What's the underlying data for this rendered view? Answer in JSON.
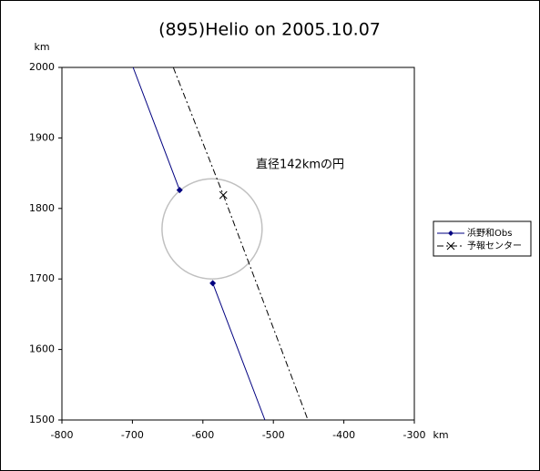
{
  "chart_data": {
    "type": "line",
    "title": "(895)Helio on 2005.10.07",
    "x_label": "km",
    "y_label": "km",
    "xlim": [
      -800,
      -300
    ],
    "ylim": [
      1500,
      2000
    ],
    "xticks": [
      -800,
      -700,
      -600,
      -500,
      -400,
      -300
    ],
    "yticks": [
      1500,
      1600,
      1700,
      1800,
      1900,
      2000
    ],
    "series": [
      {
        "name": "浜野和Obs",
        "color": "#000080",
        "marker": "diamond",
        "dash": "solid",
        "x": [
          -699,
          -633,
          null,
          -586,
          -512
        ],
        "values": [
          2000,
          1826,
          null,
          1694,
          1500
        ]
      },
      {
        "name": "予報センター",
        "color": "#000000",
        "marker": "x",
        "dash": "dashdot",
        "x": [
          -642,
          -571,
          -451
        ],
        "values": [
          2000,
          1819,
          1500
        ]
      }
    ],
    "circle": {
      "x": -587,
      "y": 1771,
      "diameter": 142,
      "color": "#c0c0c0",
      "label": "直径142kmの円"
    },
    "legend": "right"
  }
}
